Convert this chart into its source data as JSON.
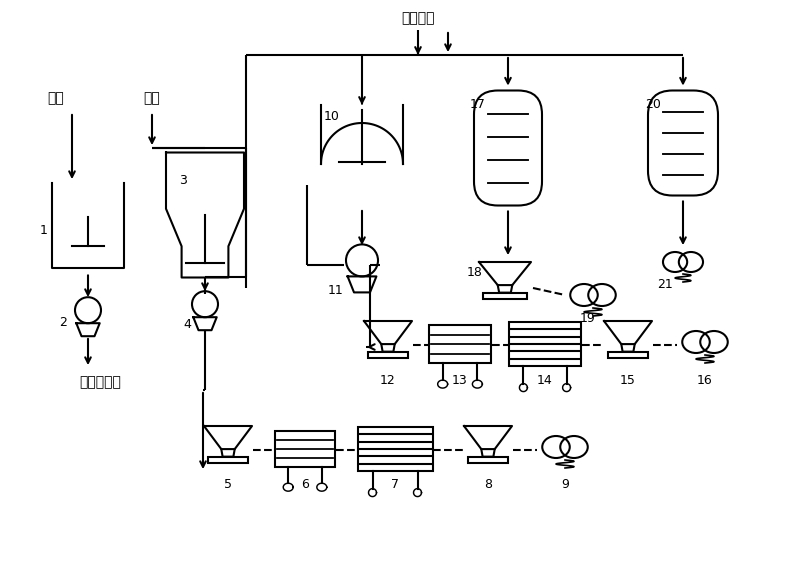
{
  "bg_color": "#ffffff",
  "line_color": "#000000",
  "text_color": "#000000",
  "labels": {
    "chromium_slag": "醒渣",
    "hcl": "盐酸",
    "barium_hydroxide": "氪氧化鑙",
    "further_processing": "另行深加工"
  }
}
